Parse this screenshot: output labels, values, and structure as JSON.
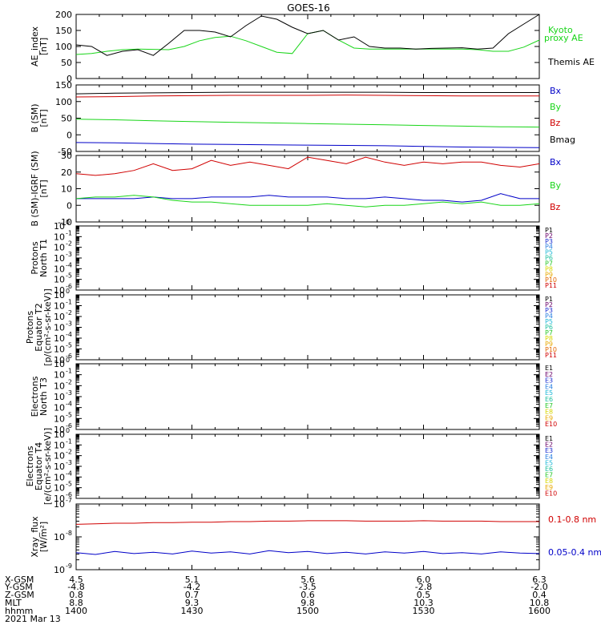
{
  "title": "GOES-16",
  "colors": {
    "black": "#000000",
    "red": "#d00000",
    "green": "#19d519",
    "blue": "#0000c8",
    "P": [
      "#000000",
      "#6a006a",
      "#1a2fd0",
      "#2a7fe0",
      "#20b8d8",
      "#22c0a0",
      "#28c828",
      "#d6d600",
      "#e8a800",
      "#e26600",
      "#d00000"
    ],
    "E": [
      "#000000",
      "#6a006a",
      "#1a2fd0",
      "#2a7fe0",
      "#20b8d8",
      "#22c0a0",
      "#28c828",
      "#d6d600",
      "#e8a800",
      "#d00000"
    ]
  },
  "panels": [
    {
      "id": "ae",
      "ylabel": [
        "AE_index",
        "[nT]"
      ],
      "yticks": [
        "0",
        "50",
        "100",
        "150",
        "200"
      ],
      "legend": [
        {
          "text": "Kyoto",
          "color": "green"
        },
        {
          "text": "proxy AE",
          "color": "green"
        },
        {
          "text": "Themis AE",
          "color": "black"
        }
      ]
    },
    {
      "id": "bsm",
      "ylabel": [
        "B (SM)",
        "[nT]"
      ],
      "yticks": [
        "-50",
        "0",
        "50",
        "100",
        "150"
      ],
      "legend": [
        {
          "text": "Bx",
          "color": "blue"
        },
        {
          "text": "By",
          "color": "green"
        },
        {
          "text": "Bz",
          "color": "red"
        },
        {
          "text": "Bmag",
          "color": "black"
        }
      ]
    },
    {
      "id": "bigrf",
      "ylabel": [
        "B (SM)-IGRF (SM)",
        "[nT]"
      ],
      "yticks": [
        "-10",
        "0",
        "10",
        "20",
        "30"
      ],
      "legend": [
        {
          "text": "Bx",
          "color": "blue"
        },
        {
          "text": "By",
          "color": "green"
        },
        {
          "text": "Bz",
          "color": "red"
        }
      ]
    },
    {
      "id": "p1",
      "ylabel": [
        "Protons",
        "North T1"
      ],
      "yticks": [
        "10",
        "10",
        "10",
        "10",
        "10",
        "10",
        "10",
        "10"
      ],
      "ytick_exps": [
        "-6",
        "-5",
        "-4",
        "-3",
        "-2",
        "-1",
        "0"
      ],
      "legend_labels": [
        "P1",
        "P2",
        "P3",
        "P4",
        "P5",
        "P6",
        "P7",
        "P8",
        "P9",
        "P10",
        "P11"
      ]
    },
    {
      "id": "p2",
      "ylabel": [
        "Protons",
        "Equator T2",
        "[p/(cm²-s-sr-keV)]"
      ],
      "ytick_exps": [
        "-6",
        "-5",
        "-4",
        "-3",
        "-2",
        "-1",
        "0"
      ],
      "legend_labels": [
        "P1",
        "P2",
        "P3",
        "P4",
        "P5",
        "P6",
        "P7",
        "P8",
        "P9",
        "P10",
        "P11"
      ]
    },
    {
      "id": "e3",
      "ylabel": [
        "Electrons",
        "North T3"
      ],
      "ytick_exps": [
        "-6",
        "-5",
        "-4",
        "-3",
        "-2",
        "-1",
        "0"
      ],
      "legend_labels": [
        "E1",
        "E2",
        "E3",
        "E4",
        "E5",
        "E6",
        "E7",
        "E8",
        "E9",
        "E10"
      ]
    },
    {
      "id": "e4",
      "ylabel": [
        "Electrons",
        "Equator T4",
        "[e/(cm²-s-sr-keV)]"
      ],
      "ytick_exps": [
        "-6",
        "-5",
        "-4",
        "-3",
        "-2",
        "-1",
        "0"
      ],
      "legend_labels": [
        "E1",
        "E2",
        "E3",
        "E4",
        "E5",
        "E6",
        "E7",
        "E8",
        "E9",
        "E10"
      ]
    },
    {
      "id": "xray",
      "ylabel": [
        "Xray_flux",
        "[W/m²]"
      ],
      "ytick_exps": [
        "-9",
        "-8",
        "-7"
      ],
      "legend": [
        {
          "text": "0.1-0.8 nm",
          "color": "red"
        },
        {
          "text": "0.05-0.4 nm",
          "color": "blue"
        }
      ]
    }
  ],
  "ephemeris": {
    "row_labels": [
      "X-GSM",
      "Y-GSM",
      "Z-GSM",
      "MLT",
      "hhmm",
      "2021 Mar 13"
    ],
    "columns": [
      [
        "4.5",
        "-4.8",
        "0.8",
        "8.8",
        "1400"
      ],
      [
        "5.1",
        "-4.2",
        "0.7",
        "9.3",
        "1430"
      ],
      [
        "5.6",
        "-3.5",
        "0.6",
        "9.8",
        "1500"
      ],
      [
        "6.0",
        "-2.8",
        "0.5",
        "10.3",
        "1530"
      ],
      [
        "6.3",
        "-2.0",
        "0.4",
        "10.8",
        "1600"
      ]
    ]
  },
  "chart_data": [
    {
      "type": "line",
      "xlabel": "hhmm",
      "ylabel": "AE_index [nT]",
      "ylim": [
        0,
        200
      ],
      "x": [
        1400,
        1404,
        1408,
        1412,
        1416,
        1420,
        1424,
        1428,
        1432,
        1436,
        1440,
        1444,
        1448,
        1452,
        1456,
        1500,
        1504,
        1508,
        1512,
        1516,
        1520,
        1524,
        1528,
        1532,
        1536,
        1540,
        1544,
        1548,
        1552,
        1556,
        1600
      ],
      "series": [
        {
          "name": "Kyoto proxy AE",
          "color": "green",
          "values": [
            75,
            78,
            85,
            90,
            92,
            91,
            90,
            100,
            118,
            128,
            132,
            118,
            100,
            82,
            78,
            140,
            150,
            120,
            95,
            92,
            92,
            92,
            92,
            92,
            92,
            92,
            90,
            85,
            85,
            98,
            120
          ]
        },
        {
          "name": "Themis AE",
          "color": "black",
          "values": [
            105,
            100,
            72,
            85,
            90,
            72,
            110,
            150,
            150,
            145,
            130,
            165,
            195,
            185,
            160,
            140,
            150,
            120,
            130,
            100,
            95,
            95,
            92,
            94,
            95,
            96,
            92,
            95,
            140,
            170,
            200
          ]
        }
      ]
    },
    {
      "type": "line",
      "xlabel": "hhmm",
      "ylabel": "B (SM) [nT]",
      "ylim": [
        -60,
        150
      ],
      "x": [
        1400,
        1410,
        1420,
        1430,
        1440,
        1450,
        1500,
        1510,
        1520,
        1530,
        1540,
        1550,
        1600
      ],
      "series": [
        {
          "name": "Bx",
          "color": "blue",
          "values": [
            -32,
            -33,
            -35,
            -37,
            -38,
            -39,
            -40,
            -41,
            -42,
            -44,
            -46,
            -47,
            -48
          ]
        },
        {
          "name": "By",
          "color": "green",
          "values": [
            42,
            40,
            37,
            34,
            32,
            30,
            28,
            26,
            24,
            22,
            20,
            18,
            17
          ]
        },
        {
          "name": "Bz",
          "color": "red",
          "values": [
            112,
            113,
            115,
            116,
            117,
            117,
            117,
            118,
            117,
            116,
            115,
            115,
            115
          ]
        },
        {
          "name": "Bmag",
          "color": "black",
          "values": [
            122,
            124,
            125,
            126,
            127,
            127,
            127,
            127,
            127,
            126,
            126,
            126,
            126
          ]
        }
      ]
    },
    {
      "type": "line",
      "xlabel": "hhmm",
      "ylabel": "B (SM)-IGRF (SM) [nT]",
      "ylim": [
        -10,
        30
      ],
      "x": [
        1400,
        1405,
        1410,
        1415,
        1420,
        1425,
        1430,
        1435,
        1440,
        1445,
        1450,
        1455,
        1500,
        1505,
        1510,
        1515,
        1520,
        1525,
        1530,
        1535,
        1540,
        1545,
        1550,
        1555,
        1600
      ],
      "series": [
        {
          "name": "Bx",
          "color": "blue",
          "values": [
            4,
            4,
            4,
            4,
            5,
            4,
            4,
            5,
            5,
            5,
            6,
            5,
            5,
            5,
            4,
            4,
            5,
            4,
            3,
            3,
            2,
            3,
            7,
            4,
            4
          ]
        },
        {
          "name": "By",
          "color": "green",
          "values": [
            4,
            5,
            5,
            6,
            5,
            3,
            2,
            2,
            1,
            0,
            0,
            0,
            0,
            1,
            0,
            -1,
            0,
            0,
            1,
            2,
            1,
            2,
            0,
            0,
            1
          ]
        },
        {
          "name": "Bz",
          "color": "red",
          "values": [
            19,
            18,
            19,
            21,
            25,
            21,
            22,
            27,
            24,
            26,
            24,
            22,
            29,
            27,
            25,
            29,
            26,
            24,
            26,
            25,
            26,
            26,
            24,
            23,
            25
          ]
        }
      ]
    },
    {
      "type": "line",
      "xlabel": "hhmm",
      "ylabel": "Xray_flux [W/m²]",
      "ylim": [
        1e-09,
        1e-07
      ],
      "yscale": "log",
      "x": [
        1400,
        1405,
        1410,
        1415,
        1420,
        1425,
        1430,
        1435,
        1440,
        1445,
        1450,
        1455,
        1500,
        1505,
        1510,
        1515,
        1520,
        1525,
        1530,
        1535,
        1540,
        1545,
        1550,
        1555,
        1600
      ],
      "series": [
        {
          "name": "0.1-0.8 nm",
          "color": "red",
          "values": [
            2.4e-08,
            2.5e-08,
            2.6e-08,
            2.6e-08,
            2.7e-08,
            2.7e-08,
            2.8e-08,
            2.8e-08,
            2.9e-08,
            2.9e-08,
            3e-08,
            3e-08,
            3.1e-08,
            3.1e-08,
            3.1e-08,
            3e-08,
            3e-08,
            3e-08,
            3.1e-08,
            3e-08,
            3e-08,
            3e-08,
            2.9e-08,
            2.9e-08,
            2.9e-08
          ]
        },
        {
          "name": "0.05-0.4 nm",
          "color": "blue",
          "values": [
            3.3e-09,
            2.9e-09,
            3.6e-09,
            3.1e-09,
            3.4e-09,
            3e-09,
            3.7e-09,
            3.2e-09,
            3.5e-09,
            3e-09,
            3.8e-09,
            3.3e-09,
            3.6e-09,
            3.1e-09,
            3.4e-09,
            3e-09,
            3.5e-09,
            3.2e-09,
            3.6e-09,
            3.1e-09,
            3.3e-09,
            3e-09,
            3.5e-09,
            3.2e-09,
            3.1e-09
          ]
        }
      ]
    }
  ]
}
